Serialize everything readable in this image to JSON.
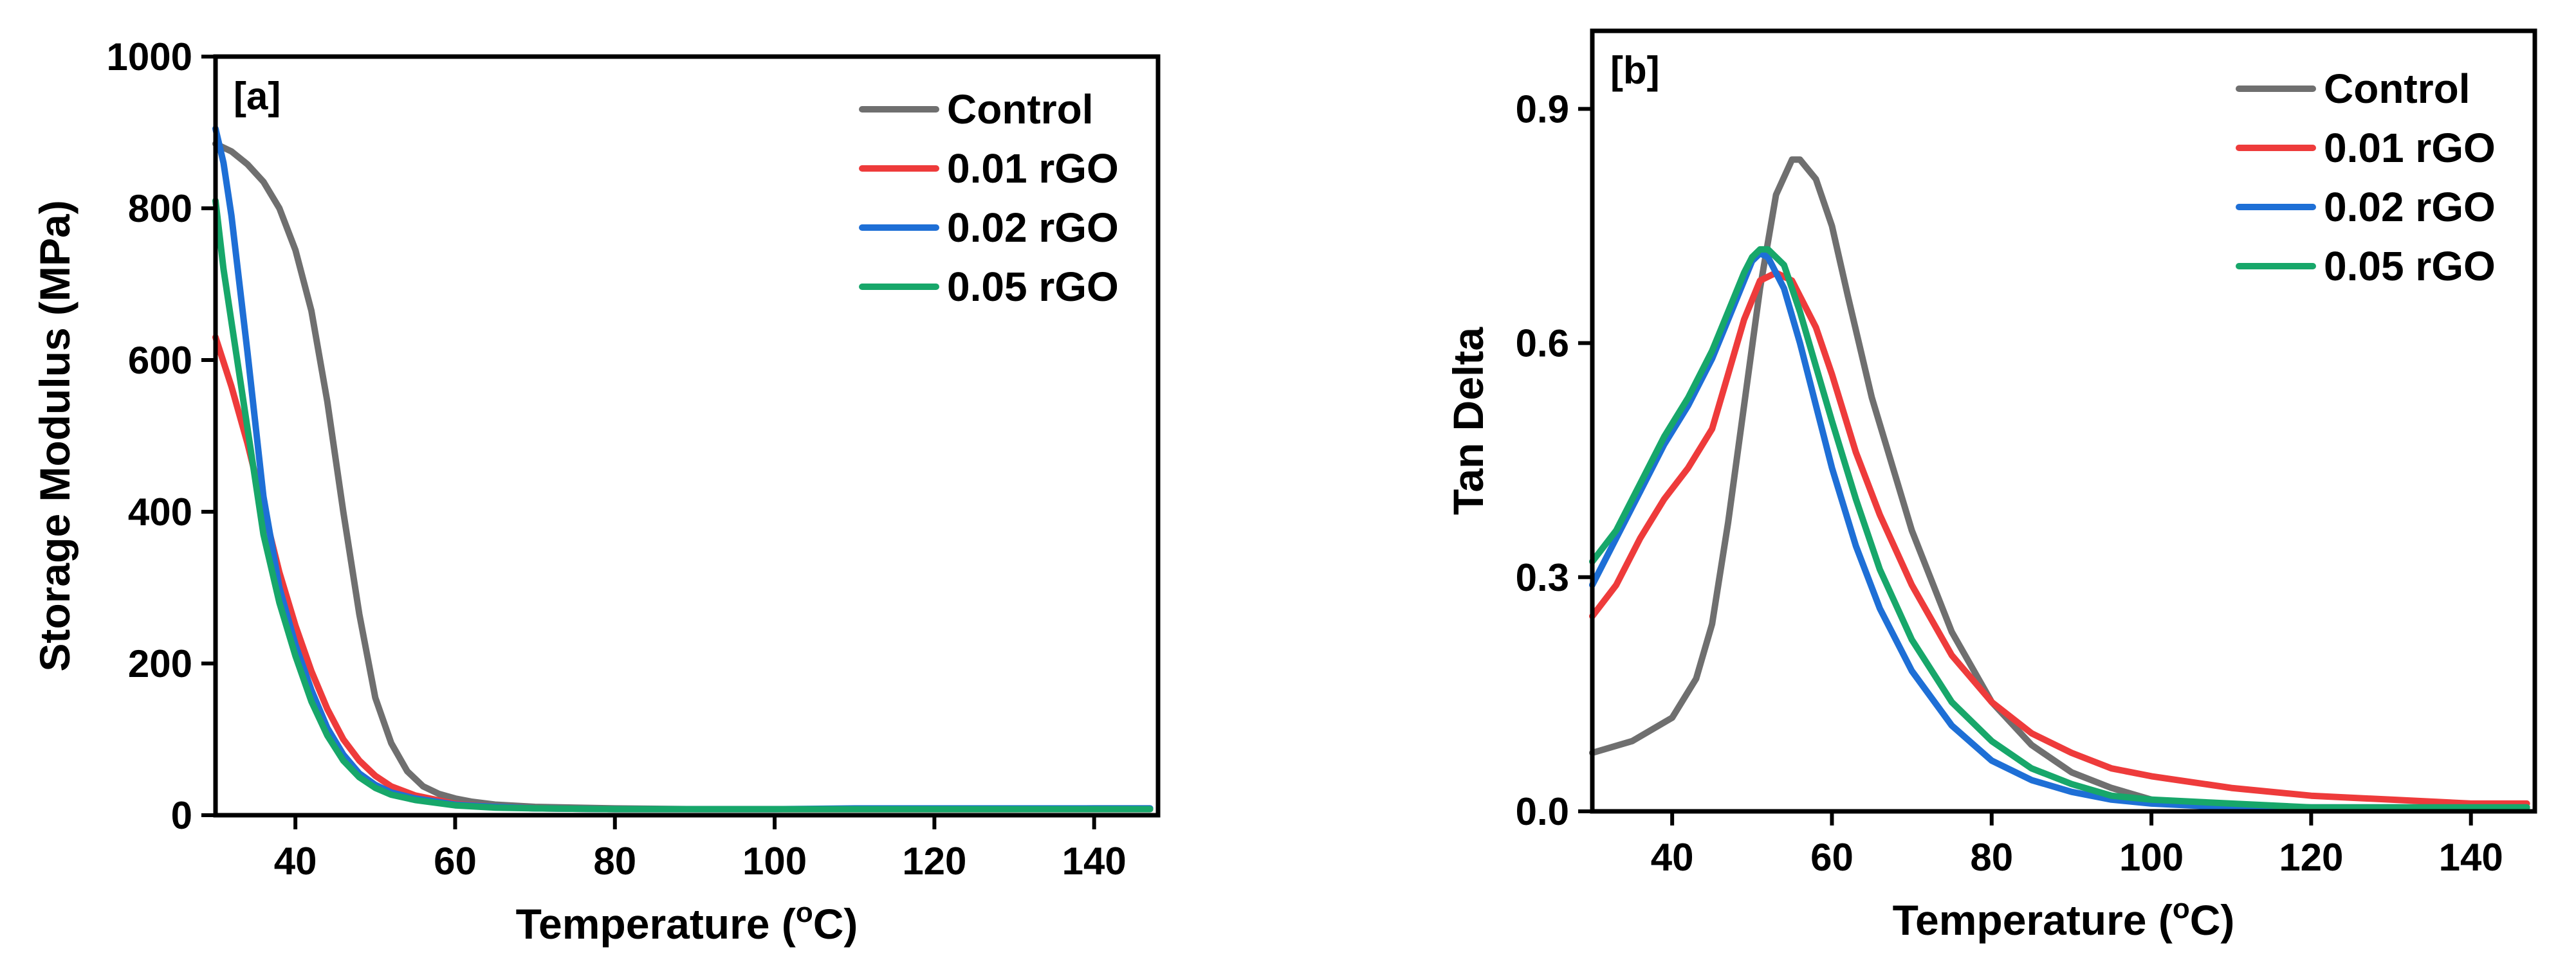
{
  "chart_data": [
    {
      "type": "line",
      "panel_label": "[a]",
      "title": "",
      "xlabel": "Temperature (",
      "xlabel_superscript": "o",
      "xlabel_suffix": "C)",
      "ylabel": "Storage Modulus (MPa)",
      "xlim": [
        30,
        148
      ],
      "ylim": [
        0,
        1000
      ],
      "xticks": [
        40,
        60,
        80,
        100,
        120,
        140
      ],
      "yticks": [
        0,
        200,
        400,
        600,
        800,
        1000
      ],
      "legend_position": "top-right",
      "series": [
        {
          "name": "Control",
          "color": "#6f6f6f",
          "x": [
            30,
            32,
            34,
            36,
            38,
            40,
            42,
            44,
            46,
            48,
            50,
            52,
            54,
            56,
            58,
            60,
            62,
            65,
            70,
            80,
            90,
            100,
            110,
            120,
            130,
            140,
            147
          ],
          "y": [
            885,
            875,
            858,
            835,
            800,
            745,
            665,
            545,
            400,
            265,
            155,
            95,
            58,
            38,
            28,
            22,
            18,
            14,
            11,
            9,
            8,
            8,
            8,
            8,
            8,
            9,
            9
          ]
        },
        {
          "name": "0.01 rGO",
          "color": "#ee3b3b",
          "x": [
            30,
            32,
            34,
            36,
            38,
            40,
            42,
            44,
            46,
            48,
            50,
            52,
            55,
            60,
            65,
            70,
            80,
            90,
            100,
            110,
            120,
            130,
            140,
            147
          ],
          "y": [
            630,
            565,
            490,
            405,
            320,
            250,
            190,
            140,
            100,
            72,
            52,
            38,
            26,
            15,
            11,
            9,
            8,
            8,
            8,
            8,
            8,
            8,
            8,
            8
          ]
        },
        {
          "name": "0.02 rGO",
          "color": "#1e6fd6",
          "x": [
            30,
            31,
            32,
            34,
            36,
            38,
            40,
            42,
            44,
            46,
            48,
            50,
            52,
            55,
            60,
            65,
            70,
            80,
            90,
            100,
            110,
            120,
            130,
            140,
            147
          ],
          "y": [
            905,
            860,
            790,
            610,
            420,
            300,
            225,
            165,
            115,
            80,
            55,
            40,
            30,
            22,
            14,
            11,
            9,
            8,
            8,
            8,
            9,
            9,
            9,
            9,
            9
          ]
        },
        {
          "name": "0.05 rGO",
          "color": "#17a76a",
          "x": [
            30,
            31,
            32,
            34,
            36,
            38,
            40,
            42,
            44,
            46,
            48,
            50,
            52,
            55,
            60,
            65,
            70,
            80,
            90,
            100,
            110,
            120,
            130,
            140,
            147
          ],
          "y": [
            810,
            720,
            650,
            510,
            370,
            280,
            210,
            150,
            105,
            72,
            50,
            36,
            27,
            20,
            13,
            10,
            9,
            8,
            8,
            8,
            8,
            8,
            8,
            8,
            8
          ]
        }
      ]
    },
    {
      "type": "line",
      "panel_label": "[b]",
      "title": "",
      "xlabel": "Temperature (",
      "xlabel_superscript": "o",
      "xlabel_suffix": "C)",
      "ylabel": "Tan Delta",
      "xlim": [
        30,
        148
      ],
      "ylim": [
        0,
        1.0
      ],
      "xticks": [
        40,
        60,
        80,
        100,
        120,
        140
      ],
      "yticks": [
        0.0,
        0.3,
        0.6,
        0.9
      ],
      "ytick_labels": [
        "0.0",
        "0.3",
        "0.6",
        "0.9"
      ],
      "legend_position": "top-right",
      "series": [
        {
          "name": "Control",
          "color": "#6f6f6f",
          "x": [
            30,
            35,
            40,
            43,
            45,
            47,
            49,
            51,
            53,
            55,
            56,
            58,
            60,
            62,
            65,
            70,
            75,
            80,
            85,
            90,
            95,
            100,
            105,
            110,
            120,
            130,
            140,
            147
          ],
          "y": [
            0.075,
            0.09,
            0.12,
            0.17,
            0.24,
            0.37,
            0.52,
            0.67,
            0.79,
            0.835,
            0.835,
            0.81,
            0.75,
            0.66,
            0.53,
            0.36,
            0.23,
            0.14,
            0.085,
            0.05,
            0.03,
            0.015,
            0.01,
            0.005,
            0.005,
            0.005,
            0.005,
            0.005
          ]
        },
        {
          "name": "0.01 rGO",
          "color": "#ee3b3b",
          "x": [
            30,
            33,
            36,
            39,
            42,
            45,
            47,
            49,
            51,
            53,
            55,
            58,
            60,
            63,
            66,
            70,
            75,
            80,
            85,
            90,
            95,
            100,
            110,
            120,
            130,
            140,
            147
          ],
          "y": [
            0.25,
            0.29,
            0.35,
            0.4,
            0.44,
            0.49,
            0.56,
            0.63,
            0.68,
            0.69,
            0.68,
            0.62,
            0.56,
            0.46,
            0.38,
            0.29,
            0.2,
            0.14,
            0.1,
            0.075,
            0.055,
            0.045,
            0.03,
            0.02,
            0.015,
            0.01,
            0.01
          ]
        },
        {
          "name": "0.02 rGO",
          "color": "#1e6fd6",
          "x": [
            30,
            33,
            36,
            39,
            42,
            45,
            47,
            49,
            50,
            51,
            52,
            54,
            56,
            58,
            60,
            63,
            66,
            70,
            75,
            80,
            85,
            90,
            95,
            100,
            110,
            120,
            130,
            140,
            147
          ],
          "y": [
            0.29,
            0.35,
            0.41,
            0.47,
            0.52,
            0.58,
            0.63,
            0.68,
            0.705,
            0.715,
            0.71,
            0.67,
            0.6,
            0.52,
            0.44,
            0.34,
            0.26,
            0.18,
            0.11,
            0.065,
            0.04,
            0.025,
            0.015,
            0.01,
            0.005,
            0.005,
            0.005,
            0.005,
            0.005
          ]
        },
        {
          "name": "0.05 rGO",
          "color": "#17a76a",
          "x": [
            30,
            33,
            36,
            39,
            42,
            45,
            47,
            49,
            50,
            51,
            52,
            54,
            56,
            58,
            60,
            63,
            66,
            70,
            75,
            80,
            85,
            90,
            95,
            100,
            110,
            120,
            130,
            140,
            147
          ],
          "y": [
            0.32,
            0.36,
            0.42,
            0.48,
            0.53,
            0.59,
            0.64,
            0.69,
            0.71,
            0.72,
            0.72,
            0.7,
            0.64,
            0.57,
            0.5,
            0.4,
            0.31,
            0.22,
            0.14,
            0.09,
            0.055,
            0.035,
            0.02,
            0.015,
            0.01,
            0.005,
            0.005,
            0.005,
            0.005
          ]
        }
      ]
    }
  ]
}
